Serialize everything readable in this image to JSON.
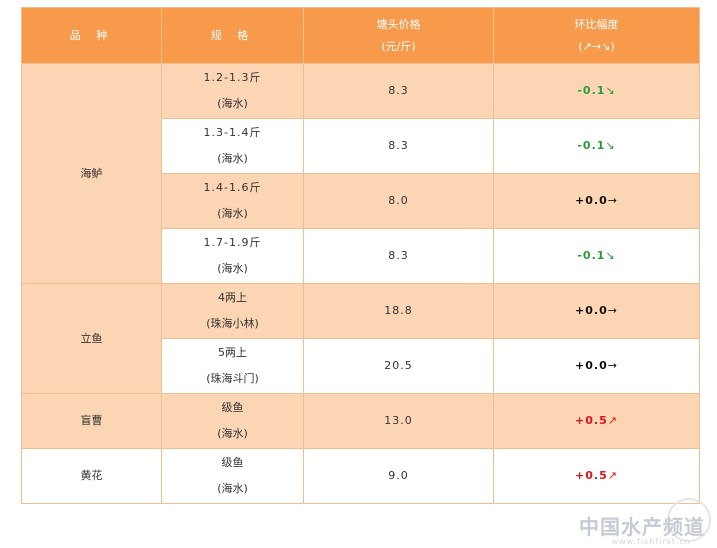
{
  "header": {
    "variety": "品 种",
    "spec": "规 格",
    "price_line1": "塘头价格",
    "price_line2": "(元/斤)",
    "change_line1": "环比幅度",
    "change_line2": "(↗→↘)"
  },
  "rows": [
    {
      "category": "海鲈",
      "spec_line1": "1.2-1.3斤",
      "spec_line2": "(海水)",
      "price": "8.3",
      "change": "-0.1",
      "arrow": "↘",
      "trend": "down"
    },
    {
      "category": "",
      "spec_line1": "1.3-1.4斤",
      "spec_line2": "(海水)",
      "price": "8.3",
      "change": "-0.1",
      "arrow": "↘",
      "trend": "down"
    },
    {
      "category": "",
      "spec_line1": "1.4-1.6斤",
      "spec_line2": "(海水)",
      "price": "8.0",
      "change": "+0.0",
      "arrow": "→",
      "trend": "flat"
    },
    {
      "category": "",
      "spec_line1": "1.7-1.9斤",
      "spec_line2": "(海水)",
      "price": "8.3",
      "change": "-0.1",
      "arrow": "↘",
      "trend": "down"
    },
    {
      "category": "立鱼",
      "spec_line1": "4两上",
      "spec_line2": "(珠海小林)",
      "price": "18.8",
      "change": "+0.0",
      "arrow": "→",
      "trend": "flat"
    },
    {
      "category": "",
      "spec_line1": "5两上",
      "spec_line2": "(珠海斗门)",
      "price": "20.5",
      "change": "+0.0",
      "arrow": "→",
      "trend": "flat"
    },
    {
      "category": "盲曹",
      "spec_line1": "级鱼",
      "spec_line2": "(海水)",
      "price": "13.0",
      "change": "+0.5",
      "arrow": "↗",
      "trend": "up"
    },
    {
      "category": "黄花",
      "spec_line1": "级鱼",
      "spec_line2": "(海水)",
      "price": "9.0",
      "change": "+0.5",
      "arrow": "↗",
      "trend": "up"
    }
  ],
  "watermark": {
    "text": "中国水产频道",
    "url": "www.fishfirst.cn"
  },
  "colors": {
    "header_bg": "#f79a4c",
    "row_tint": "#fcd5b5",
    "down": "#2b9a3a",
    "up": "#e0111b",
    "flat": "#111111"
  }
}
